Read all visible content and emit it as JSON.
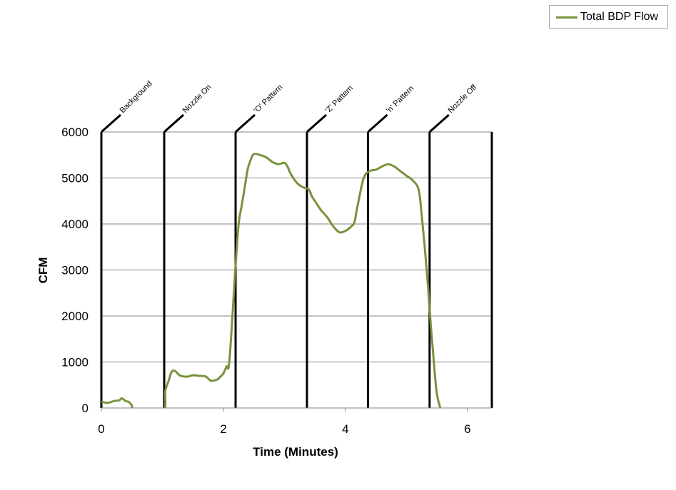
{
  "legend": {
    "series_label": "Total BDP Flow"
  },
  "colors": {
    "series": "#77933c",
    "gridline": "#868686",
    "marker_line": "#000000"
  },
  "chart_data": {
    "type": "line",
    "title": "",
    "xlabel": "Time (Minutes)",
    "ylabel": "CFM",
    "xlim": [
      0,
      6.4
    ],
    "ylim": [
      0,
      6000
    ],
    "xticks": [
      0,
      2,
      4,
      6
    ],
    "yticks": [
      0,
      1000,
      2000,
      3000,
      4000,
      5000,
      6000
    ],
    "grid": "horizontal",
    "legend_position": "top-right",
    "series": [
      {
        "name": "Total BDP Flow",
        "x": [
          0.0,
          0.1,
          0.2,
          0.25,
          0.3,
          0.33,
          0.37,
          0.4,
          0.45,
          0.5,
          0.55,
          1.0,
          1.05,
          1.1,
          1.15,
          1.2,
          1.25,
          1.3,
          1.4,
          1.5,
          1.6,
          1.7,
          1.75,
          1.8,
          1.9,
          1.95,
          2.0,
          2.05,
          2.1,
          2.2,
          2.25,
          2.3,
          2.35,
          2.4,
          2.45,
          2.5,
          2.6,
          2.7,
          2.8,
          2.9,
          3.0,
          3.05,
          3.1,
          3.2,
          3.3,
          3.4,
          3.45,
          3.5,
          3.6,
          3.7,
          3.8,
          3.9,
          4.0,
          4.1,
          4.15,
          4.2,
          4.3,
          4.4,
          4.5,
          4.6,
          4.7,
          4.8,
          4.9,
          5.0,
          5.1,
          5.2,
          5.25,
          5.3,
          5.35,
          5.4,
          5.45,
          5.5,
          5.58
        ],
        "y": [
          140,
          110,
          150,
          160,
          170,
          210,
          180,
          150,
          130,
          50,
          -150,
          -150,
          380,
          580,
          780,
          810,
          750,
          700,
          680,
          710,
          700,
          690,
          640,
          590,
          620,
          680,
          750,
          900,
          1050,
          3100,
          4000,
          4400,
          4800,
          5200,
          5400,
          5520,
          5500,
          5450,
          5350,
          5300,
          5330,
          5250,
          5100,
          4900,
          4800,
          4750,
          4600,
          4500,
          4300,
          4150,
          3950,
          3820,
          3850,
          3950,
          4050,
          4400,
          5000,
          5150,
          5180,
          5250,
          5300,
          5250,
          5150,
          5050,
          4950,
          4750,
          4200,
          3500,
          2700,
          1800,
          1000,
          300,
          -100
        ]
      }
    ],
    "annotations": [
      {
        "x": 0.0,
        "label": "Background"
      },
      {
        "x": 1.03,
        "label": "Nozzle On"
      },
      {
        "x": 2.2,
        "label": "'O' Pattern"
      },
      {
        "x": 3.37,
        "label": "'Z' Pattern"
      },
      {
        "x": 4.37,
        "label": "'n' Pattern"
      },
      {
        "x": 5.38,
        "label": "Nozzle Off"
      },
      {
        "x": 6.4,
        "label": ""
      }
    ]
  }
}
